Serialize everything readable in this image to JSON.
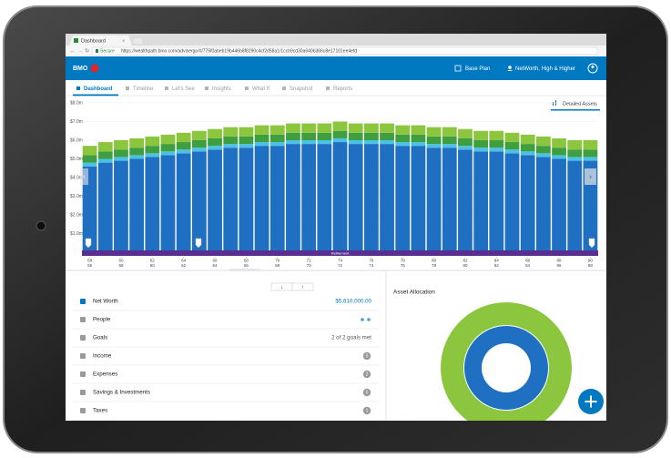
{
  "browser": {
    "tab_title": "Dashboard",
    "secure": "Secure",
    "url": "https://wealthpath.bmo.com/advisergo/#/775f0abeb19b446b8f8290c4cf2d58a1/1ccb9cd30a640b366c8e17101ee4efd"
  },
  "header": {
    "logo": "BMO",
    "plan": "Base Plan",
    "scenario": "NetWorth, High & Higher"
  },
  "tabs": [
    "Dashboard",
    "Timeline",
    "Let's See",
    "Insights",
    "What If",
    "Snapshot",
    "Reports"
  ],
  "chart_data": {
    "type": "bar",
    "stacked": true,
    "toggle": "Detailed Assets",
    "band_label": "Retirement",
    "categories": [
      "58",
      null,
      "60",
      null,
      "62",
      null,
      "64",
      null,
      "66",
      null,
      "68",
      null,
      "70",
      null,
      "72",
      null,
      "74",
      null,
      "76",
      null,
      "78",
      null,
      "80",
      null,
      "82",
      null,
      "84",
      null,
      "86",
      null,
      "88",
      null,
      "90"
    ],
    "categories_2": [
      "56",
      null,
      "58",
      null,
      "60",
      null,
      "62",
      null,
      "64",
      null,
      "66",
      null,
      "68",
      null,
      "70",
      null,
      "72",
      null,
      "74",
      null,
      "76",
      null,
      "78",
      null,
      "80",
      null,
      "82",
      null,
      "84",
      null,
      "86",
      null,
      "88"
    ],
    "series": [
      {
        "color": "#1f6fc3",
        "values": [
          4.6,
          4.8,
          4.9,
          5.0,
          5.1,
          5.2,
          5.3,
          5.4,
          5.5,
          5.6,
          5.6,
          5.7,
          5.7,
          5.8,
          5.8,
          5.8,
          5.9,
          5.8,
          5.8,
          5.8,
          5.7,
          5.7,
          5.6,
          5.6,
          5.5,
          5.4,
          5.4,
          5.3,
          5.2,
          5.1,
          5.0,
          4.9,
          4.9
        ]
      },
      {
        "color": "#4cc1e6",
        "values": [
          0.2,
          0.2,
          0.2,
          0.2,
          0.2,
          0.2,
          0.2,
          0.2,
          0.2,
          0.2,
          0.2,
          0.2,
          0.2,
          0.2,
          0.2,
          0.2,
          0.2,
          0.2,
          0.2,
          0.2,
          0.2,
          0.2,
          0.2,
          0.2,
          0.2,
          0.2,
          0.2,
          0.2,
          0.2,
          0.2,
          0.2,
          0.2,
          0.2
        ]
      },
      {
        "color": "#3f9e3f",
        "values": [
          0.4,
          0.4,
          0.4,
          0.4,
          0.4,
          0.4,
          0.4,
          0.4,
          0.4,
          0.4,
          0.4,
          0.4,
          0.4,
          0.4,
          0.4,
          0.4,
          0.4,
          0.4,
          0.4,
          0.4,
          0.4,
          0.4,
          0.4,
          0.4,
          0.4,
          0.4,
          0.4,
          0.4,
          0.4,
          0.4,
          0.4,
          0.4,
          0.4
        ]
      },
      {
        "color": "#8cc63f",
        "values": [
          0.5,
          0.5,
          0.5,
          0.5,
          0.5,
          0.5,
          0.5,
          0.5,
          0.5,
          0.5,
          0.5,
          0.5,
          0.5,
          0.5,
          0.5,
          0.5,
          0.5,
          0.5,
          0.5,
          0.5,
          0.5,
          0.5,
          0.5,
          0.5,
          0.5,
          0.5,
          0.5,
          0.5,
          0.5,
          0.5,
          0.5,
          0.5,
          0.5
        ]
      }
    ],
    "ylim": [
      0,
      8
    ],
    "yticks": [
      {
        "value": 1,
        "label": "$1.0m"
      },
      {
        "value": 2,
        "label": "$2.0m"
      },
      {
        "value": 3,
        "label": "$3.0m"
      },
      {
        "value": 4,
        "label": "$4.0m"
      },
      {
        "value": 5,
        "label": "$5.0m"
      },
      {
        "value": 6,
        "label": "$6.0m"
      },
      {
        "value": 7,
        "label": "$7.0m"
      },
      {
        "value": 8,
        "label": "$8.0m"
      }
    ],
    "grid": true
  },
  "summary": {
    "rows": [
      {
        "label": "Net Worth",
        "value": "$5,610,000.00"
      },
      {
        "label": "People"
      },
      {
        "label": "Goals",
        "value": "2 of 2 goals met"
      },
      {
        "label": "Income",
        "count": "5"
      },
      {
        "label": "Expenses",
        "count": "2"
      },
      {
        "label": "Savings & Investments",
        "count": "5"
      },
      {
        "label": "Taxes",
        "count": "1"
      }
    ]
  },
  "asset_allocation": {
    "title": "Asset Allocation"
  }
}
